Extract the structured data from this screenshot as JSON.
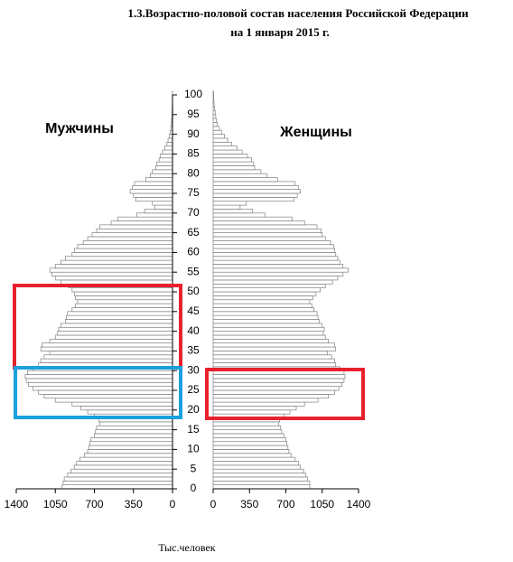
{
  "chart_data": {
    "type": "bar",
    "orientation": "horizontal",
    "title": "1.3.Возрастно-половой состав населения Российской Федерации",
    "subtitle": "на 1 января 2015 г.",
    "x_label": "Тыс.человек",
    "y": [
      0,
      1,
      2,
      3,
      4,
      5,
      6,
      7,
      8,
      9,
      10,
      11,
      12,
      13,
      14,
      15,
      16,
      17,
      18,
      19,
      20,
      21,
      22,
      23,
      24,
      25,
      26,
      27,
      28,
      29,
      30,
      31,
      32,
      33,
      34,
      35,
      36,
      37,
      38,
      39,
      40,
      41,
      42,
      43,
      44,
      45,
      46,
      47,
      48,
      49,
      50,
      51,
      52,
      53,
      54,
      55,
      56,
      57,
      58,
      59,
      60,
      61,
      62,
      63,
      64,
      65,
      66,
      67,
      68,
      69,
      70,
      71,
      72,
      73,
      74,
      75,
      76,
      77,
      78,
      79,
      80,
      81,
      82,
      83,
      84,
      85,
      86,
      87,
      88,
      89,
      90,
      91,
      92,
      93,
      94,
      95,
      96,
      97,
      98,
      99,
      100
    ],
    "series": [
      {
        "name": "Мужчины",
        "color": "#ffffff",
        "values": [
          990,
          980,
          970,
          940,
          910,
          880,
          860,
          830,
          790,
          760,
          750,
          740,
          730,
          700,
          690,
          680,
          650,
          660,
          700,
          760,
          820,
          900,
          1050,
          1150,
          1200,
          1250,
          1290,
          1310,
          1320,
          1300,
          1250,
          1200,
          1180,
          1150,
          1100,
          1180,
          1170,
          1100,
          1050,
          1030,
          1020,
          1000,
          960,
          950,
          940,
          900,
          870,
          850,
          870,
          880,
          900,
          930,
          1000,
          1050,
          1080,
          1100,
          1050,
          1000,
          960,
          900,
          880,
          850,
          800,
          760,
          720,
          680,
          650,
          550,
          490,
          320,
          250,
          160,
          180,
          330,
          350,
          380,
          360,
          340,
          240,
          200,
          180,
          150,
          140,
          120,
          110,
          90,
          70,
          50,
          40,
          30,
          20,
          15,
          10,
          8,
          5,
          4,
          3,
          2,
          1,
          1,
          1
        ]
      },
      {
        "name": "Женщины",
        "color": "#ffffff",
        "values": [
          930,
          930,
          910,
          890,
          870,
          840,
          820,
          790,
          750,
          730,
          720,
          710,
          700,
          680,
          660,
          650,
          630,
          640,
          680,
          740,
          800,
          880,
          1010,
          1110,
          1170,
          1210,
          1240,
          1260,
          1270,
          1260,
          1220,
          1180,
          1170,
          1140,
          1100,
          1180,
          1170,
          1110,
          1080,
          1060,
          1070,
          1050,
          1020,
          1010,
          1000,
          970,
          950,
          930,
          960,
          990,
          1030,
          1080,
          1150,
          1200,
          1250,
          1300,
          1250,
          1220,
          1200,
          1180,
          1170,
          1160,
          1130,
          1080,
          1050,
          1040,
          1000,
          880,
          760,
          500,
          380,
          260,
          320,
          780,
          810,
          840,
          820,
          790,
          620,
          520,
          460,
          400,
          390,
          370,
          330,
          280,
          230,
          180,
          140,
          110,
          80,
          60,
          40,
          30,
          25,
          20,
          15,
          10,
          7,
          5,
          4
        ]
      }
    ],
    "xlim": [
      0,
      1400
    ],
    "xticks": [
      0,
      350,
      700,
      1050,
      1400
    ],
    "ylim": [
      0,
      100
    ],
    "yticks": [
      0,
      5,
      10,
      15,
      20,
      25,
      30,
      35,
      40,
      45,
      50,
      55,
      60,
      65,
      70,
      75,
      80,
      85,
      90,
      95,
      100
    ],
    "bar_stroke": "#808080"
  }
}
